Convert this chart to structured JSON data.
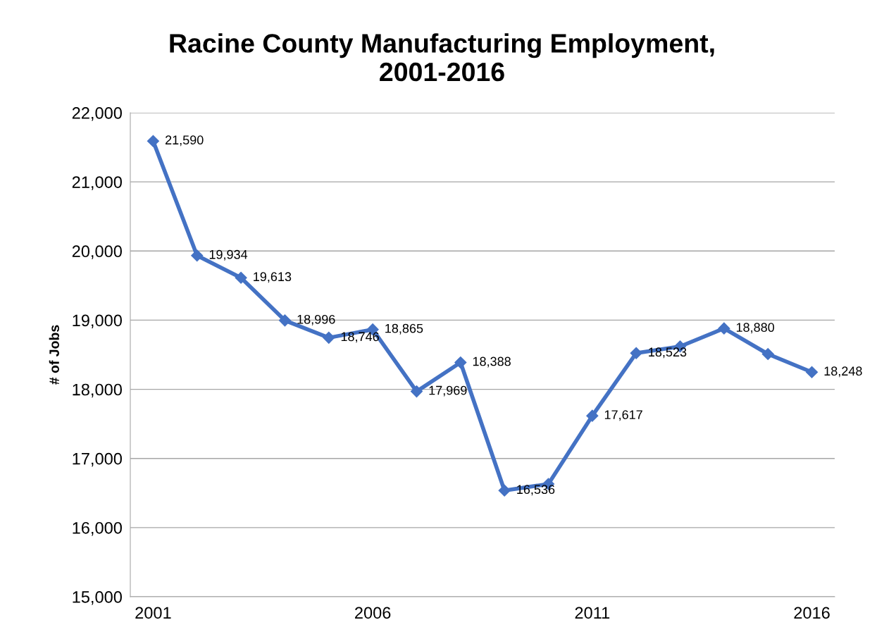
{
  "chart_data": {
    "type": "line",
    "title": "Racine County Manufacturing Employment,\n2001-2016",
    "ylabel": "# of Jobs",
    "categories": [
      "2001",
      null,
      null,
      null,
      null,
      "2006",
      null,
      null,
      null,
      null,
      "2011",
      null,
      null,
      null,
      null,
      "2016"
    ],
    "series": [
      {
        "color": "#4472c4",
        "values": [
          21590,
          19934,
          19613,
          18996,
          18746,
          18865,
          17969,
          18388,
          16536,
          16630,
          17617,
          18523,
          18620,
          18880,
          18510,
          18248
        ]
      }
    ],
    "value_labels": [
      "21,590",
      "19,934",
      "19,613",
      "18,996",
      "18,746",
      "18,865",
      "17,969",
      "18,388",
      "16,536",
      null,
      "17,617",
      "18,523",
      null,
      "18,880",
      null,
      "18,248"
    ],
    "ylim": [
      15000,
      22000
    ],
    "yticks": [
      {
        "value": 15000,
        "label": "15,000"
      },
      {
        "value": 16000,
        "label": "16,000"
      },
      {
        "value": 17000,
        "label": "17,000"
      },
      {
        "value": 18000,
        "label": "18,000"
      },
      {
        "value": 19000,
        "label": "19,000"
      },
      {
        "value": 20000,
        "label": "20,000"
      },
      {
        "value": 21000,
        "label": "21,000"
      },
      {
        "value": 22000,
        "label": "22,000"
      }
    ],
    "grid": "y",
    "marker": "diamond",
    "line_style": "solid",
    "legend": false
  }
}
